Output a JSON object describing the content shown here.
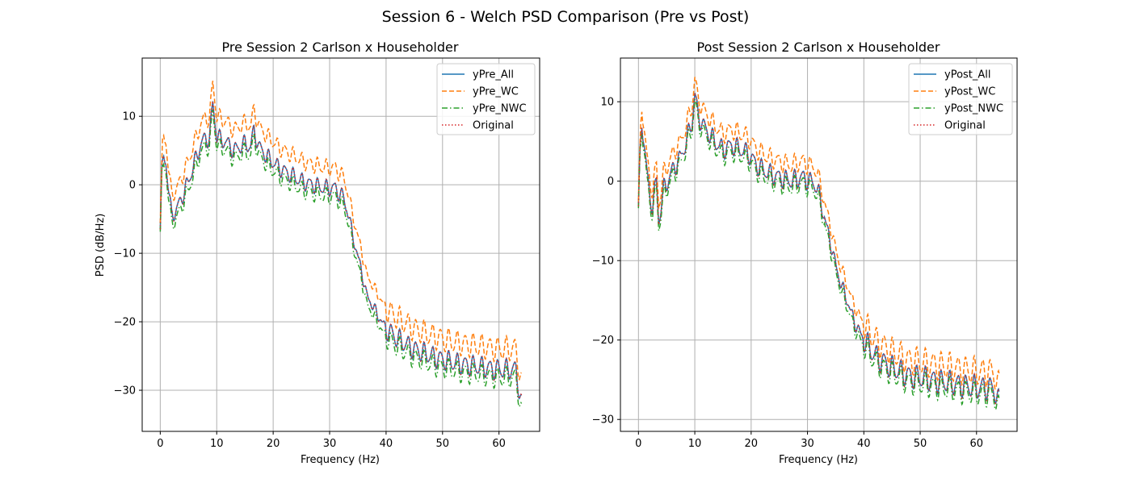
{
  "suptitle": "Session 6 - Welch PSD Comparison (Pre vs Post)",
  "chart_data": [
    {
      "type": "line",
      "title": "Pre Session 2 Carlson x Householder",
      "xlabel": "Frequency (Hz)",
      "ylabel": "PSD (dB/Hz)",
      "xlim": [
        -3.2,
        67.2
      ],
      "ylim": [
        -36,
        18.5
      ],
      "xticks": [
        0,
        10,
        20,
        30,
        40,
        50,
        60
      ],
      "xtick_labels": [
        "0",
        "10",
        "20",
        "30",
        "40",
        "50",
        "60"
      ],
      "yticks": [
        10,
        0,
        -10,
        -20,
        -30
      ],
      "ytick_labels": [
        "10",
        "0",
        "−10",
        "−20",
        "−30"
      ],
      "grid": true,
      "legend_loc": "upper right",
      "series": [
        {
          "name": "yPre_All",
          "color": "#1f77b4",
          "style": "solid",
          "offset": 0
        },
        {
          "name": "yPre_WC",
          "color": "#ff7f0e",
          "style": "dashed",
          "offset": 3
        },
        {
          "name": "yPre_NWC",
          "color": "#2ca02c",
          "style": "dashdot",
          "offset": -1.2
        },
        {
          "name": "Original",
          "color": "#d62728",
          "style": "dotted",
          "offset": 0
        }
      ],
      "base_curve": {
        "x": [
          0,
          0.3,
          0.6,
          1.0,
          1.5,
          2.0,
          3.0,
          4.0,
          5.0,
          6.0,
          7.0,
          8.0,
          8.7,
          9.3,
          10.0,
          11.0,
          12.0,
          13.0,
          14.0,
          15.0,
          16.0,
          16.6,
          17.5,
          19.0,
          21.0,
          23.0,
          25.0,
          27.0,
          29.0,
          31.0,
          32.5,
          33.5,
          34.5,
          35.5,
          36.5,
          37.5,
          38.5,
          40.0,
          42.0,
          45.0,
          48.0,
          52.0,
          56.0,
          60.0,
          63.0,
          64.0
        ],
        "y": [
          -6.5,
          2.0,
          4.0,
          3.5,
          -1.0,
          -4.5,
          -3.5,
          -1.5,
          0.5,
          3.0,
          5.5,
          7.0,
          6.5,
          12.0,
          7.0,
          6.5,
          6.0,
          5.0,
          5.5,
          6.0,
          5.5,
          8.0,
          5.5,
          4.0,
          2.5,
          1.5,
          0.5,
          0.0,
          -0.5,
          -0.5,
          -2.0,
          -5.0,
          -9.0,
          -12.0,
          -16.0,
          -17.5,
          -19.0,
          -21.0,
          -22.5,
          -24.0,
          -25.0,
          -26.0,
          -26.5,
          -27.0,
          -27.0,
          -32.0
        ]
      }
    },
    {
      "type": "line",
      "title": "Post Session 2 Carlson x Householder",
      "xlabel": "Frequency (Hz)",
      "ylabel": "",
      "xlim": [
        -3.2,
        67.2
      ],
      "ylim": [
        -31.5,
        15.5
      ],
      "xticks": [
        0,
        10,
        20,
        30,
        40,
        50,
        60
      ],
      "xtick_labels": [
        "0",
        "10",
        "20",
        "30",
        "40",
        "50",
        "60"
      ],
      "yticks": [
        10,
        0,
        -10,
        -20,
        -30
      ],
      "ytick_labels": [
        "10",
        "0",
        "−10",
        "−20",
        "−30"
      ],
      "grid": true,
      "legend_loc": "upper right",
      "series": [
        {
          "name": "yPost_All",
          "color": "#1f77b4",
          "style": "solid",
          "offset": 0
        },
        {
          "name": "yPost_WC",
          "color": "#ff7f0e",
          "style": "dashed",
          "offset": 2
        },
        {
          "name": "yPost_NWC",
          "color": "#2ca02c",
          "style": "dashdot",
          "offset": -0.8
        },
        {
          "name": "Original",
          "color": "#d62728",
          "style": "dotted",
          "offset": 0
        }
      ],
      "base_curve": {
        "x": [
          0,
          0.3,
          0.6,
          1.0,
          1.5,
          2.0,
          2.5,
          3.2,
          3.6,
          4.5,
          5.5,
          6.5,
          7.5,
          8.5,
          9.5,
          10.0,
          10.5,
          11.5,
          12.5,
          13.5,
          15.0,
          16.5,
          18.0,
          19.5,
          21.0,
          23.0,
          25.0,
          27.0,
          29.0,
          30.5,
          31.5,
          32.5,
          33.5,
          34.5,
          35.5,
          36.5,
          37.5,
          38.5,
          40.0,
          42.0,
          45.0,
          48.0,
          52.0,
          56.0,
          60.0,
          63.0,
          64.0
        ],
        "y": [
          -4.0,
          3.5,
          7.5,
          5.0,
          1.0,
          -2.0,
          -3.0,
          0.0,
          -5.0,
          -1.0,
          0.5,
          2.0,
          3.0,
          5.0,
          7.5,
          11.0,
          8.5,
          7.0,
          6.0,
          5.0,
          4.0,
          4.5,
          4.0,
          3.5,
          2.0,
          1.0,
          0.5,
          0.0,
          0.5,
          0.0,
          -0.5,
          -3.0,
          -6.0,
          -9.0,
          -12.0,
          -14.0,
          -16.0,
          -18.0,
          -20.0,
          -22.0,
          -23.5,
          -24.5,
          -25.0,
          -25.5,
          -26.0,
          -26.0,
          -28.0
        ]
      }
    }
  ]
}
